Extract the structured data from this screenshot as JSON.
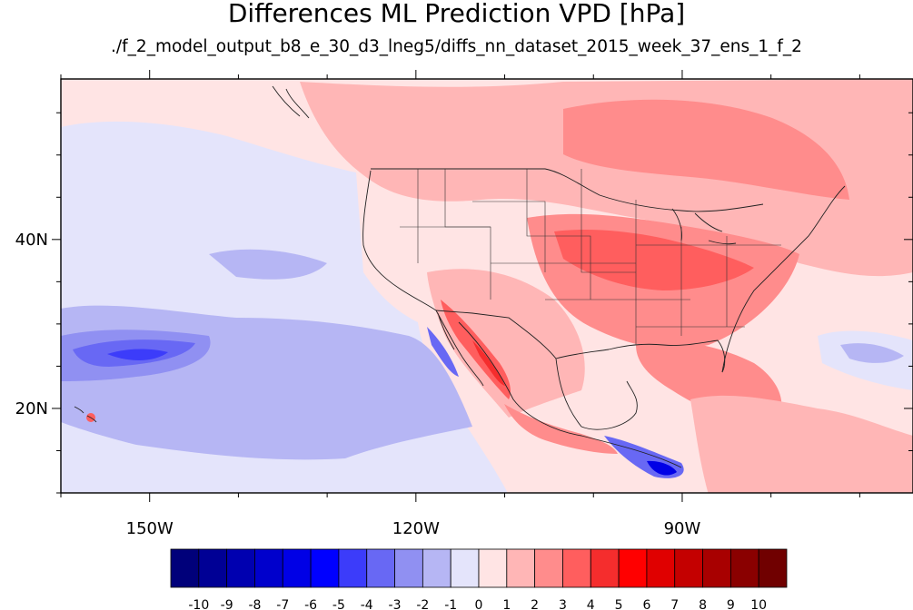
{
  "title": "Differences ML Prediction VPD [hPa]",
  "subtitle": "./f_2_model_output_b8_e_30_d3_lneg5/diffs_nn_dataset_2015_week_37_ens_1_f_2",
  "map": {
    "lon_range": [
      -160,
      -64
    ],
    "lat_range": [
      10,
      59
    ],
    "lon_ticks": [
      {
        "value": -150,
        "label": "150W"
      },
      {
        "value": -120,
        "label": "120W"
      },
      {
        "value": -90,
        "label": "90W"
      }
    ],
    "lat_ticks": [
      {
        "value": 20,
        "label": "20N"
      },
      {
        "value": 40,
        "label": "40N"
      }
    ],
    "background_color": "#ffe4e4"
  },
  "colorbar": {
    "labels": [
      "-10",
      "-9",
      "-8",
      "-7",
      "-6",
      "-5",
      "-4",
      "-3",
      "-2",
      "-1",
      "0",
      "1",
      "2",
      "3",
      "4",
      "5",
      "6",
      "7",
      "8",
      "9",
      "10"
    ],
    "colors": [
      "#00007a",
      "#000095",
      "#0000b0",
      "#0000cc",
      "#0000e6",
      "#0000ff",
      "#3c3cfa",
      "#6868f4",
      "#9090f2",
      "#b6b6f4",
      "#e4e4fb",
      "#ffe4e4",
      "#ffb6b6",
      "#ff8c8c",
      "#ff5e5e",
      "#f52d2d",
      "#ff0000",
      "#e00000",
      "#c40000",
      "#a80000",
      "#8a0000",
      "#700000"
    ]
  }
}
